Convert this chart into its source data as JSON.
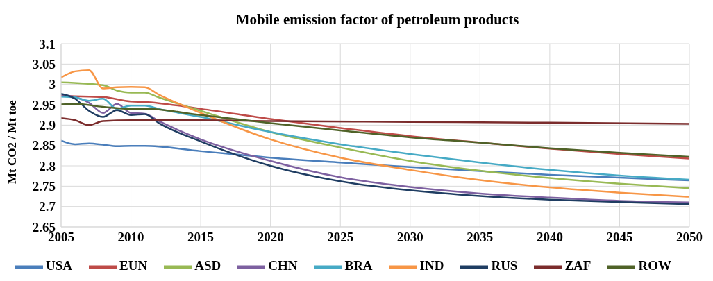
{
  "chart_data": {
    "type": "line",
    "title": "Mobile emission factor of petroleum products",
    "ylabel": "Mt CO2 / Mt toe",
    "xlim": [
      2005,
      2050
    ],
    "xticks": [
      2005,
      2010,
      2015,
      2020,
      2025,
      2030,
      2035,
      2040,
      2045,
      2050
    ],
    "ylim": [
      2.65,
      3.1
    ],
    "yticks": [
      2.65,
      2.7,
      2.75,
      2.8,
      2.85,
      2.9,
      2.95,
      3,
      3.05,
      3.1
    ],
    "grid": true,
    "legend": "bottom",
    "marker": "none",
    "line_style": "solid",
    "series": [
      {
        "name": "USA",
        "color": "#4a7ebb",
        "x": [
          2005,
          2006,
          2007,
          2008,
          2009,
          2010,
          2011,
          2015,
          2020,
          2025,
          2030,
          2035,
          2040,
          2045,
          2050
        ],
        "values": [
          2.862,
          2.853,
          2.855,
          2.852,
          2.848,
          2.849,
          2.849,
          2.836,
          2.82,
          2.808,
          2.797,
          2.787,
          2.778,
          2.771,
          2.764
        ]
      },
      {
        "name": "EUN",
        "color": "#be4b48",
        "x": [
          2005,
          2007,
          2008,
          2010,
          2011,
          2015,
          2020,
          2025,
          2030,
          2035,
          2040,
          2045,
          2050
        ],
        "values": [
          2.972,
          2.97,
          2.969,
          2.958,
          2.957,
          2.94,
          2.915,
          2.893,
          2.873,
          2.857,
          2.842,
          2.829,
          2.818
        ]
      },
      {
        "name": "ASD",
        "color": "#98b954",
        "x": [
          2005,
          2008,
          2009,
          2010,
          2011,
          2012,
          2015,
          2020,
          2025,
          2030,
          2035,
          2040,
          2045,
          2050
        ],
        "values": [
          3.005,
          2.998,
          2.985,
          2.98,
          2.98,
          2.968,
          2.935,
          2.883,
          2.845,
          2.812,
          2.788,
          2.77,
          2.756,
          2.745
        ]
      },
      {
        "name": "CHN",
        "color": "#7d60a0",
        "x": [
          2005,
          2007,
          2008,
          2009,
          2010,
          2011,
          2012,
          2015,
          2020,
          2025,
          2030,
          2035,
          2040,
          2045,
          2050
        ],
        "values": [
          2.975,
          2.955,
          2.93,
          2.952,
          2.93,
          2.928,
          2.91,
          2.865,
          2.812,
          2.772,
          2.748,
          2.732,
          2.722,
          2.714,
          2.71
        ]
      },
      {
        "name": "BRA",
        "color": "#46aac5",
        "x": [
          2005,
          2006,
          2007,
          2008,
          2009,
          2010,
          2011,
          2012,
          2015,
          2020,
          2025,
          2030,
          2035,
          2040,
          2045,
          2050
        ],
        "values": [
          2.97,
          2.968,
          2.96,
          2.965,
          2.94,
          2.948,
          2.948,
          2.94,
          2.92,
          2.883,
          2.853,
          2.829,
          2.808,
          2.79,
          2.776,
          2.766
        ]
      },
      {
        "name": "IND",
        "color": "#f79646",
        "x": [
          2005,
          2006,
          2007,
          2008,
          2009,
          2010,
          2011,
          2012,
          2015,
          2020,
          2025,
          2030,
          2035,
          2040,
          2045,
          2050
        ],
        "values": [
          3.017,
          3.032,
          3.035,
          2.99,
          2.993,
          2.994,
          2.993,
          2.975,
          2.93,
          2.865,
          2.82,
          2.79,
          2.765,
          2.747,
          2.734,
          2.724
        ]
      },
      {
        "name": "RUS",
        "color": "#1f3d62",
        "x": [
          2005,
          2006,
          2007,
          2008,
          2009,
          2010,
          2011,
          2012,
          2015,
          2020,
          2025,
          2030,
          2035,
          2040,
          2045,
          2050
        ],
        "values": [
          2.977,
          2.965,
          2.935,
          2.92,
          2.937,
          2.925,
          2.927,
          2.905,
          2.86,
          2.8,
          2.762,
          2.74,
          2.726,
          2.717,
          2.711,
          2.706
        ]
      },
      {
        "name": "ZAF",
        "color": "#7b2c2c",
        "x": [
          2005,
          2006,
          2007,
          2008,
          2010,
          2015,
          2020,
          2030,
          2040,
          2050
        ],
        "values": [
          2.917,
          2.912,
          2.9,
          2.91,
          2.912,
          2.912,
          2.91,
          2.908,
          2.906,
          2.903
        ]
      },
      {
        "name": "ROW",
        "color": "#4f6228",
        "x": [
          2005,
          2006,
          2008,
          2010,
          2011,
          2015,
          2020,
          2025,
          2030,
          2035,
          2040,
          2045,
          2050
        ],
        "values": [
          2.951,
          2.952,
          2.945,
          2.94,
          2.94,
          2.925,
          2.905,
          2.887,
          2.87,
          2.857,
          2.843,
          2.832,
          2.822
        ]
      }
    ]
  }
}
